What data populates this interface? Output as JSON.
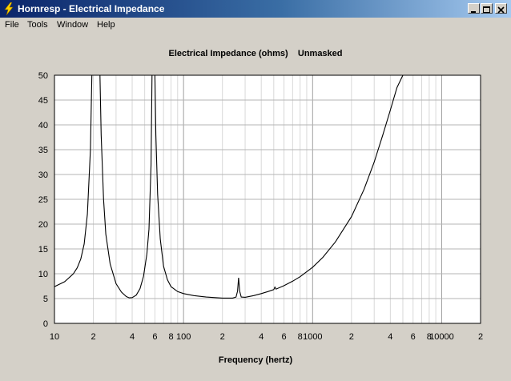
{
  "window": {
    "title": "Hornresp - Electrical Impedance",
    "icon": "lightning-icon",
    "controls": [
      "minimize-icon",
      "maximize-icon",
      "close-icon"
    ]
  },
  "menu": {
    "items": [
      "File",
      "Tools",
      "Window",
      "Help"
    ]
  },
  "chart_data": {
    "type": "line",
    "title": "Electrical Impedance (ohms)    Unmasked",
    "xlabel": "Frequency (hertz)",
    "ylabel": "",
    "xscale": "log",
    "xlim": [
      10,
      20000
    ],
    "ylim": [
      0,
      50
    ],
    "y_ticks": [
      "0",
      "5",
      "10",
      "15",
      "20",
      "25",
      "30",
      "35",
      "40",
      "45",
      "50"
    ],
    "x_tick_labels": [
      {
        "value": 10,
        "label": "10"
      },
      {
        "value": 20,
        "label": "2"
      },
      {
        "value": 40,
        "label": "4"
      },
      {
        "value": 60,
        "label": "6"
      },
      {
        "value": 80,
        "label": "8"
      },
      {
        "value": 100,
        "label": "100"
      },
      {
        "value": 200,
        "label": "2"
      },
      {
        "value": 400,
        "label": "4"
      },
      {
        "value": 600,
        "label": "6"
      },
      {
        "value": 800,
        "label": "8"
      },
      {
        "value": 1000,
        "label": "1000"
      },
      {
        "value": 2000,
        "label": "2"
      },
      {
        "value": 4000,
        "label": "4"
      },
      {
        "value": 6000,
        "label": "6"
      },
      {
        "value": 8000,
        "label": "8"
      },
      {
        "value": 10000,
        "label": "10000"
      },
      {
        "value": 20000,
        "label": "2"
      }
    ],
    "grid": true,
    "series": [
      {
        "line_color": "#000000",
        "points": [
          [
            10,
            7.4
          ],
          [
            12,
            8.4
          ],
          [
            14,
            10
          ],
          [
            15,
            11.2
          ],
          [
            16,
            13
          ],
          [
            17,
            16
          ],
          [
            18,
            22
          ],
          [
            19,
            35
          ],
          [
            19.5,
            50
          ],
          [
            22.5,
            50
          ],
          [
            23,
            38
          ],
          [
            24,
            25
          ],
          [
            25,
            18
          ],
          [
            27,
            12
          ],
          [
            30,
            8
          ],
          [
            33,
            6.3
          ],
          [
            36,
            5.4
          ],
          [
            38,
            5.15
          ],
          [
            40,
            5.2
          ],
          [
            43,
            5.7
          ],
          [
            46,
            7
          ],
          [
            49,
            9.5
          ],
          [
            52,
            14
          ],
          [
            54,
            19
          ],
          [
            56,
            32
          ],
          [
            57,
            50
          ],
          [
            60,
            50
          ],
          [
            61,
            38
          ],
          [
            63,
            26
          ],
          [
            66,
            17
          ],
          [
            70,
            11.5
          ],
          [
            75,
            8.8
          ],
          [
            80,
            7.4
          ],
          [
            90,
            6.4
          ],
          [
            100,
            6.0
          ],
          [
            120,
            5.6
          ],
          [
            150,
            5.3
          ],
          [
            200,
            5.1
          ],
          [
            240,
            5.1
          ],
          [
            255,
            5.3
          ],
          [
            262,
            6.5
          ],
          [
            267,
            9.2
          ],
          [
            272,
            6.5
          ],
          [
            280,
            5.3
          ],
          [
            300,
            5.25
          ],
          [
            350,
            5.6
          ],
          [
            400,
            6.0
          ],
          [
            450,
            6.4
          ],
          [
            500,
            6.8
          ],
          [
            510,
            7.3
          ],
          [
            520,
            6.9
          ],
          [
            600,
            7.6
          ],
          [
            700,
            8.5
          ],
          [
            800,
            9.4
          ],
          [
            1000,
            11.3
          ],
          [
            1200,
            13.3
          ],
          [
            1500,
            16.4
          ],
          [
            2000,
            21.5
          ],
          [
            2500,
            27
          ],
          [
            3000,
            32.5
          ],
          [
            3500,
            38
          ],
          [
            4000,
            43
          ],
          [
            4500,
            47.5
          ],
          [
            5000,
            50
          ]
        ]
      }
    ]
  }
}
